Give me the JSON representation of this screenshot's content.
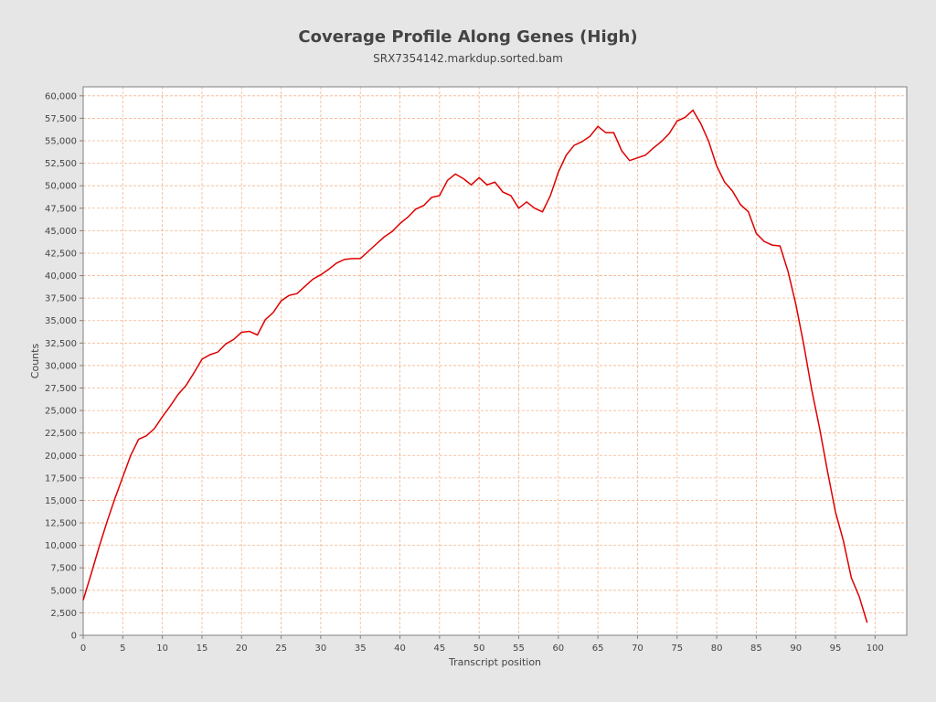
{
  "chart_data": {
    "type": "line",
    "title": "Coverage Profile Along Genes (High)",
    "subtitle": "SRX7354142.markdup.sorted.bam",
    "xlabel": "Transcript position",
    "ylabel": "Counts",
    "xlim": [
      0,
      104
    ],
    "ylim": [
      0,
      61000
    ],
    "x_ticks": [
      0,
      5,
      10,
      15,
      20,
      25,
      30,
      35,
      40,
      45,
      50,
      55,
      60,
      65,
      70,
      75,
      80,
      85,
      90,
      95,
      100
    ],
    "y_ticks": [
      0,
      2500,
      5000,
      7500,
      10000,
      12500,
      15000,
      17500,
      20000,
      22500,
      25000,
      27500,
      30000,
      32500,
      35000,
      37500,
      40000,
      42500,
      45000,
      47500,
      50000,
      52500,
      55000,
      57500,
      60000
    ],
    "y_tick_labels": [
      "0",
      "2,500",
      "5,000",
      "7,500",
      "10,000",
      "12,500",
      "15,000",
      "17,500",
      "20,000",
      "22,500",
      "25,000",
      "27,500",
      "30,000",
      "32,500",
      "35,000",
      "37,500",
      "40,000",
      "42,500",
      "45,000",
      "47,500",
      "50,000",
      "52,500",
      "55,000",
      "57,500",
      "60,000"
    ],
    "grid": true,
    "legend": "none",
    "colors": {
      "line": "#dd0000",
      "grid": "#f2b58e",
      "plot_bg": "#ffffff",
      "frame": "#808080"
    },
    "series": [
      {
        "x": [
          0,
          1,
          2,
          3,
          4,
          5,
          6,
          7,
          8,
          9,
          10,
          11,
          12,
          13,
          14,
          15,
          16,
          17,
          18,
          19,
          20,
          21,
          22,
          23,
          24,
          25,
          26,
          27,
          28,
          29,
          30,
          31,
          32,
          33,
          34,
          35,
          36,
          37,
          38,
          39,
          40,
          41,
          42,
          43,
          44,
          45,
          46,
          47,
          48,
          49,
          50,
          51,
          52,
          53,
          54,
          55,
          56,
          57,
          58,
          59,
          60,
          61,
          62,
          63,
          64,
          65,
          66,
          67,
          68,
          69,
          70,
          71,
          72,
          73,
          74,
          75,
          76,
          77,
          78,
          79,
          80,
          81,
          82,
          83,
          84,
          85,
          86,
          87,
          88,
          89,
          90,
          91,
          92,
          93,
          94,
          95,
          96,
          97,
          98,
          99
        ],
        "values": [
          3900,
          6800,
          9800,
          12600,
          15200,
          17600,
          20000,
          21800,
          22200,
          23000,
          24300,
          25500,
          26800,
          27800,
          29200,
          30700,
          31200,
          31500,
          32400,
          32900,
          33700,
          33800,
          33400,
          35100,
          35900,
          37200,
          37800,
          38000,
          38800,
          39600,
          40100,
          40700,
          41400,
          41800,
          41900,
          41900,
          42700,
          43500,
          44300,
          44900,
          45800,
          46500,
          47400,
          47800,
          48700,
          48900,
          50600,
          51300,
          50800,
          50100,
          50900,
          50100,
          50400,
          49300,
          48900,
          47500,
          48200,
          47500,
          47100,
          48900,
          51500,
          53400,
          54500,
          54900,
          55500,
          56600,
          55900,
          55900,
          53900,
          52800,
          53100,
          53400,
          54200,
          54900,
          55800,
          57200,
          57600,
          58400,
          56900,
          54900,
          52200,
          50400,
          49400,
          47900,
          47100,
          44700,
          43800,
          43400,
          43300,
          40500,
          36800,
          32300,
          27300,
          23000,
          18200,
          13700,
          10500,
          6400,
          4300,
          1400
        ]
      }
    ]
  }
}
